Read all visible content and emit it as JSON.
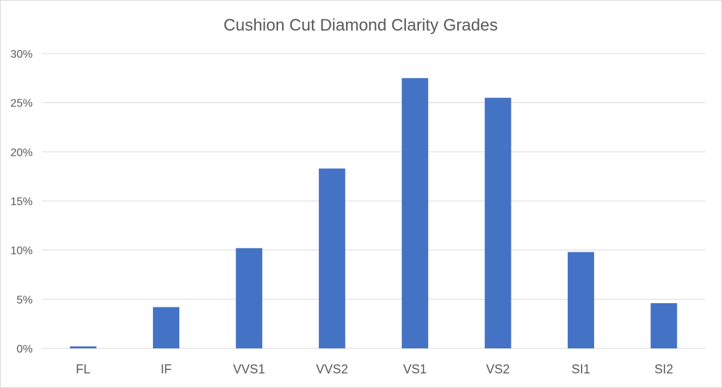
{
  "chart_data": {
    "type": "bar",
    "title": "Cushion Cut Diamond Clarity Grades",
    "xlabel": "",
    "ylabel": "",
    "categories": [
      "FL",
      "IF",
      "VVS1",
      "VVS2",
      "VS1",
      "VS2",
      "SI1",
      "SI2"
    ],
    "values": [
      0.2,
      4.2,
      10.2,
      18.3,
      27.5,
      25.5,
      9.8,
      4.6
    ],
    "ylim": [
      0,
      30
    ],
    "yticks": [
      0,
      5,
      10,
      15,
      20,
      25,
      30
    ],
    "ytick_labels": [
      "0%",
      "5%",
      "10%",
      "15%",
      "20%",
      "25%",
      "30%"
    ],
    "grid": true,
    "legend": "none",
    "bar_color": "#4472c4",
    "grid_color": "#d9d9d9",
    "text_color": "#595959"
  }
}
